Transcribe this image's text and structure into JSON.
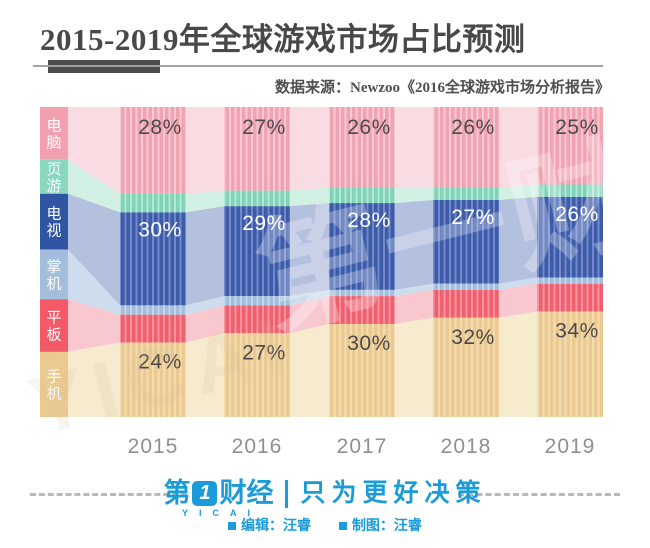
{
  "header": {
    "title": "2015-2019年全球游戏市场占比预测",
    "source": "数据来源：Newzoo《2016全球游戏市场分析报告》"
  },
  "chart_data": {
    "type": "bar",
    "subtype": "stacked-percentage-bars-with-flow-ribbons",
    "title": "2015-2019年全球游戏市场占比预测",
    "categories": [
      "2015",
      "2016",
      "2017",
      "2018",
      "2019"
    ],
    "unit": "%",
    "ylim": [
      0,
      100
    ],
    "grid": false,
    "legend_position": "left",
    "legend_strip_heights": [
      17,
      11,
      18,
      16,
      17,
      21
    ],
    "series": [
      {
        "name": "电脑",
        "values": [
          28,
          27,
          26,
          26,
          25
        ],
        "show_labels": true,
        "label_color": "#4a4a4a",
        "bar_color": "#f1a3b1",
        "stripe_color": "#f7c9d2",
        "flow_color": "#f8d6de",
        "legend_color": "#f1a0b0"
      },
      {
        "name": "页游",
        "values": [
          6,
          5,
          5,
          4,
          4
        ],
        "show_labels": false,
        "label_color": "#4a4a4a",
        "bar_color": "#7fd4b8",
        "stripe_color": "#b5e7d6",
        "flow_color": "#cdeee0",
        "legend_color": "#88d7be"
      },
      {
        "name": "电视",
        "values": [
          30,
          29,
          28,
          27,
          26
        ],
        "show_labels": true,
        "label_color": "#ffffff",
        "bar_color": "#3c5caa",
        "stripe_color": "#7288c8",
        "flow_color": "#a9b7d9",
        "legend_color": "#3055a2"
      },
      {
        "name": "掌机",
        "values": [
          3,
          3,
          2,
          2,
          2
        ],
        "show_labels": false,
        "label_color": "#4a4a4a",
        "bar_color": "#a2bedd",
        "stripe_color": "#c4d6ea",
        "flow_color": "#c7d8ea",
        "legend_color": "#a3bddd"
      },
      {
        "name": "平板",
        "values": [
          9,
          9,
          9,
          9,
          9
        ],
        "show_labels": false,
        "label_color": "#4a4a4a",
        "bar_color": "#f15f6d",
        "stripe_color": "#f593a0",
        "flow_color": "#f7bfc9",
        "legend_color": "#f15a66"
      },
      {
        "name": "手机",
        "values": [
          24,
          27,
          30,
          32,
          34
        ],
        "show_labels": true,
        "label_color": "#4a4a4a",
        "bar_color": "#ecca8f",
        "stripe_color": "#f2dcb4",
        "flow_color": "#f5e7c8",
        "legend_color": "#ebca92"
      }
    ]
  },
  "watermark": {
    "text": "第一财经",
    "subtext": "YICAI"
  },
  "footer": {
    "brand_first": "第",
    "brand_one": "1",
    "brand_rest": "财经",
    "brand_en": "YICAI",
    "slogan": "只为更好决策",
    "credits": [
      {
        "text": "编辑：汪睿"
      },
      {
        "text": "制图：汪睿"
      }
    ]
  }
}
